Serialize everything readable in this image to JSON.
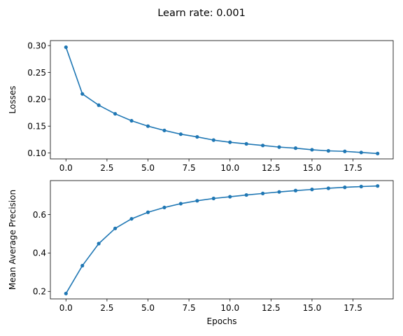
{
  "figure": {
    "suptitle": "Learn rate: 0.001"
  },
  "chart_data": [
    {
      "type": "line",
      "xlabel": "",
      "ylabel": "Losses",
      "xlim": [
        -0.95,
        19.95
      ],
      "ylim": [
        0.089,
        0.3093
      ],
      "xticks": [
        0.0,
        2.5,
        5.0,
        7.5,
        10.0,
        12.5,
        15.0,
        17.5
      ],
      "xtick_labels": [
        "0.0",
        "2.5",
        "5.0",
        "7.5",
        "10.0",
        "12.5",
        "15.0",
        "17.5"
      ],
      "yticks": [
        0.1,
        0.15,
        0.2,
        0.25,
        0.3
      ],
      "ytick_labels": [
        "0.10",
        "0.15",
        "0.20",
        "0.25",
        "0.30"
      ],
      "grid": false,
      "color": "#1f77b4",
      "marker": "circle",
      "x": [
        0,
        1,
        2,
        3,
        4,
        5,
        6,
        7,
        8,
        9,
        10,
        11,
        12,
        13,
        14,
        15,
        16,
        17,
        18,
        19
      ],
      "y": [
        0.297,
        0.21,
        0.189,
        0.173,
        0.16,
        0.15,
        0.142,
        0.135,
        0.13,
        0.124,
        0.12,
        0.117,
        0.114,
        0.111,
        0.109,
        0.106,
        0.104,
        0.103,
        0.101,
        0.099
      ]
    },
    {
      "type": "line",
      "xlabel": "Epochs",
      "ylabel": "Mean Average Precision",
      "xlim": [
        -0.95,
        19.95
      ],
      "ylim": [
        0.161,
        0.777
      ],
      "xticks": [
        0.0,
        2.5,
        5.0,
        7.5,
        10.0,
        12.5,
        15.0,
        17.5
      ],
      "xtick_labels": [
        "0.0",
        "2.5",
        "5.0",
        "7.5",
        "10.0",
        "12.5",
        "15.0",
        "17.5"
      ],
      "yticks": [
        0.2,
        0.4,
        0.6
      ],
      "ytick_labels": [
        "0.2",
        "0.4",
        "0.6"
      ],
      "grid": false,
      "color": "#1f77b4",
      "marker": "circle",
      "x": [
        0,
        1,
        2,
        3,
        4,
        5,
        6,
        7,
        8,
        9,
        10,
        11,
        12,
        13,
        14,
        15,
        16,
        17,
        18,
        19
      ],
      "y": [
        0.189,
        0.334,
        0.449,
        0.528,
        0.578,
        0.612,
        0.637,
        0.657,
        0.672,
        0.684,
        0.693,
        0.702,
        0.71,
        0.718,
        0.725,
        0.731,
        0.737,
        0.742,
        0.746,
        0.749
      ]
    }
  ]
}
